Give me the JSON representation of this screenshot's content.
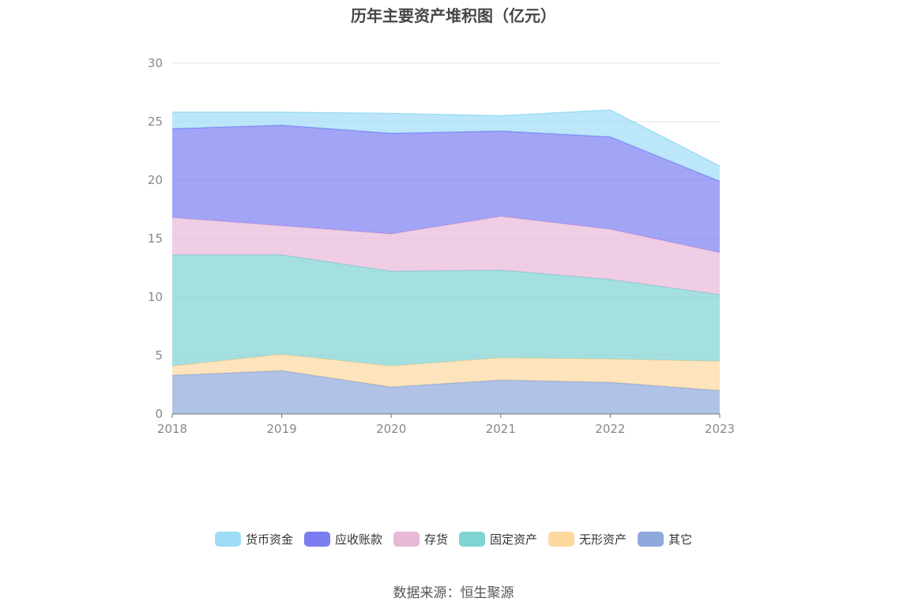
{
  "title": "历年主要资产堆积图（亿元）",
  "source": "数据来源：恒生聚源",
  "chart_data": {
    "type": "area",
    "stacked": true,
    "categories": [
      "2018",
      "2019",
      "2020",
      "2021",
      "2022",
      "2023"
    ],
    "ylim": [
      0,
      30
    ],
    "yticks": [
      0,
      5,
      10,
      15,
      20,
      25,
      30
    ],
    "grid": true,
    "legend_position": "bottom",
    "series": [
      {
        "name": "其它",
        "color": "#8fa9dc",
        "values": [
          3.3,
          3.7,
          2.3,
          2.9,
          2.7,
          2.0
        ]
      },
      {
        "name": "无形资产",
        "color": "#fdd9a0",
        "values": [
          0.8,
          1.4,
          1.8,
          1.9,
          2.0,
          2.5
        ]
      },
      {
        "name": "固定资产",
        "color": "#7fd3d3",
        "values": [
          9.5,
          8.5,
          8.1,
          7.5,
          6.8,
          5.7
        ]
      },
      {
        "name": "存货",
        "color": "#e8b8d8",
        "values": [
          3.2,
          2.5,
          3.2,
          4.6,
          4.3,
          3.6
        ]
      },
      {
        "name": "应收账款",
        "color": "#7b7df2",
        "values": [
          7.6,
          8.6,
          8.6,
          7.3,
          7.9,
          6.1
        ]
      },
      {
        "name": "货币资金",
        "color": "#9fdcf7",
        "values": [
          1.4,
          1.1,
          1.7,
          1.3,
          2.3,
          1.3
        ]
      }
    ],
    "legend_order": [
      "货币资金",
      "应收账款",
      "存货",
      "固定资产",
      "无形资产",
      "其它"
    ]
  }
}
